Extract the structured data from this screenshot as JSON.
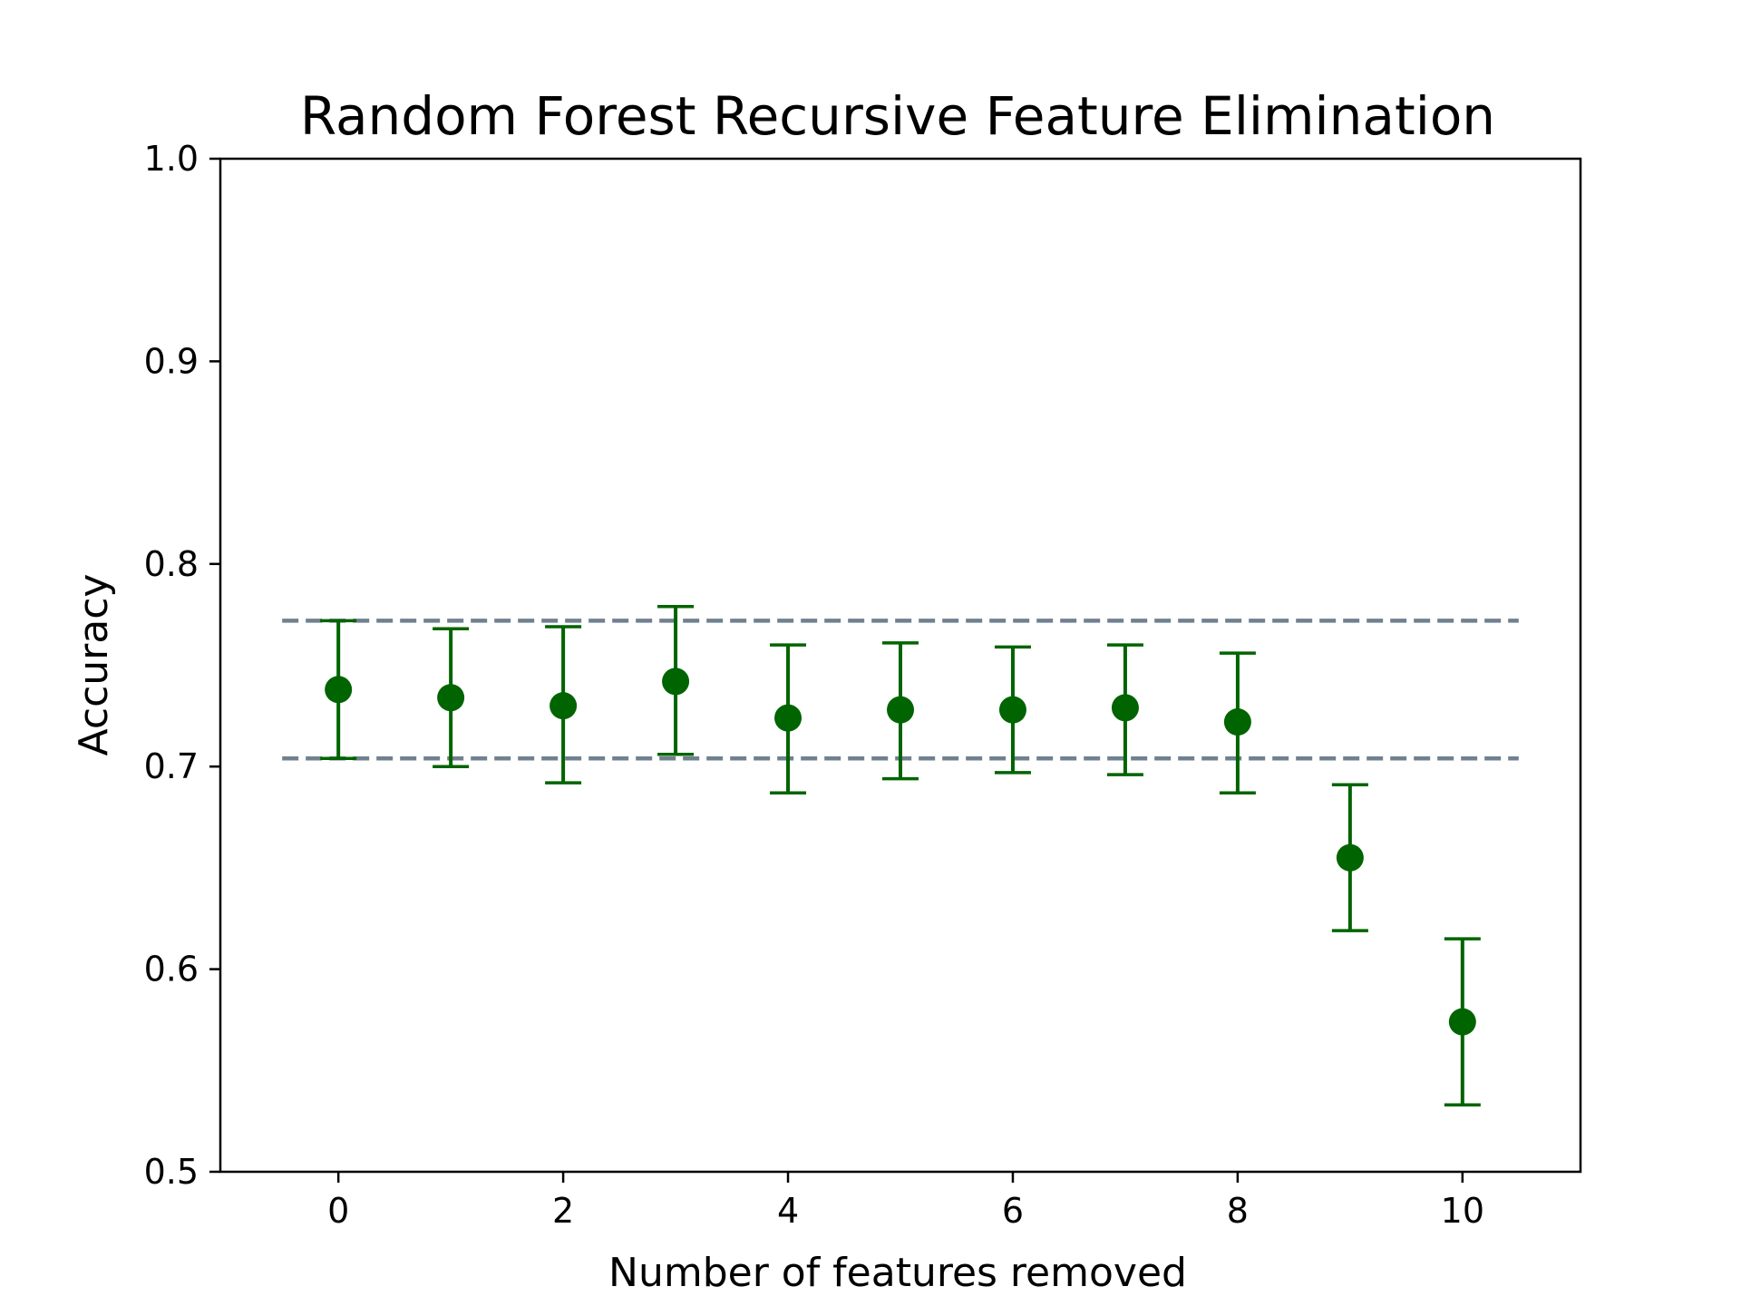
{
  "chart_data": {
    "type": "scatter",
    "title": "Random Forest Recursive Feature Elimination",
    "xlabel": "Number of features removed",
    "ylabel": "Accuracy",
    "xlim": [
      -1.05,
      11.05
    ],
    "ylim": [
      0.5,
      1.0
    ],
    "xticks": [
      0,
      2,
      4,
      6,
      8,
      10
    ],
    "xtick_labels": [
      "0",
      "2",
      "4",
      "6",
      "8",
      "10"
    ],
    "yticks": [
      0.5,
      0.6,
      0.7,
      0.8,
      0.9,
      1.0
    ],
    "ytick_labels": [
      "0.5",
      "0.6",
      "0.7",
      "0.8",
      "0.9",
      "1.0"
    ],
    "grid": false,
    "marker_color": "#006400",
    "reference_line_color": "#708090",
    "points": [
      {
        "x": 0,
        "y": 0.738,
        "lower": 0.704,
        "upper": 0.772
      },
      {
        "x": 1,
        "y": 0.734,
        "lower": 0.7,
        "upper": 0.768
      },
      {
        "x": 2,
        "y": 0.73,
        "lower": 0.692,
        "upper": 0.769
      },
      {
        "x": 3,
        "y": 0.742,
        "lower": 0.706,
        "upper": 0.779
      },
      {
        "x": 4,
        "y": 0.724,
        "lower": 0.687,
        "upper": 0.76
      },
      {
        "x": 5,
        "y": 0.728,
        "lower": 0.694,
        "upper": 0.761
      },
      {
        "x": 6,
        "y": 0.728,
        "lower": 0.697,
        "upper": 0.759
      },
      {
        "x": 7,
        "y": 0.729,
        "lower": 0.696,
        "upper": 0.76
      },
      {
        "x": 8,
        "y": 0.722,
        "lower": 0.687,
        "upper": 0.756
      },
      {
        "x": 9,
        "y": 0.655,
        "lower": 0.619,
        "upper": 0.691
      },
      {
        "x": 10,
        "y": 0.574,
        "lower": 0.533,
        "upper": 0.615
      }
    ],
    "reference_lines": [
      {
        "y": 0.772,
        "x_start": -0.5,
        "x_end": 10.5
      },
      {
        "y": 0.704,
        "x_start": -0.5,
        "x_end": 10.5
      }
    ]
  }
}
